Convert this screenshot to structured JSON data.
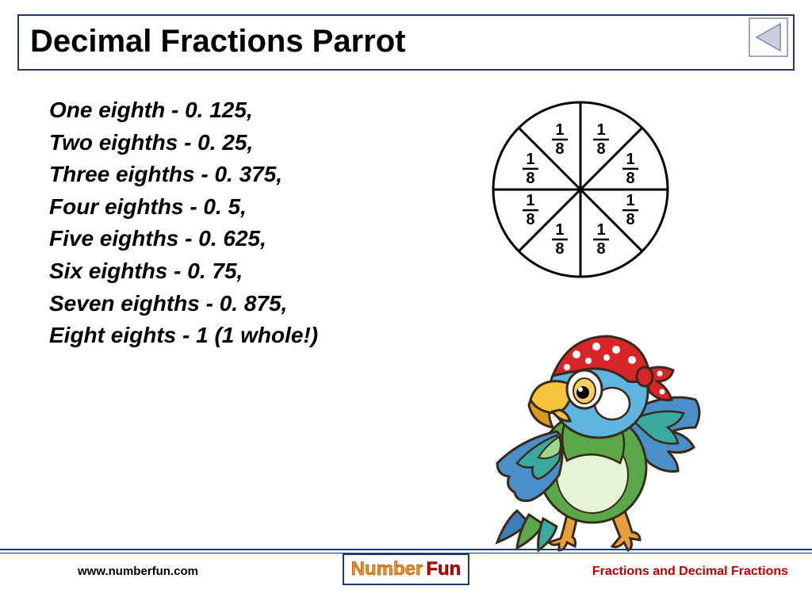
{
  "title": "Decimal Fractions Parrot",
  "lines": [
    "One eighth - 0. 125,",
    "Two eighths - 0. 25,",
    "Three eighths - 0. 375,",
    "Four eighths - 0. 5,",
    "Five eighths - 0. 625,",
    "Six eighths - 0. 75,",
    "Seven eighths - 0. 875,",
    "Eight eights - 1 (1 whole!)"
  ],
  "fraction_label": {
    "numer": "1",
    "denom": "8"
  },
  "pie": {
    "slices": 8,
    "radius": 110,
    "stroke": "#000000",
    "stroke_width": 3,
    "fill": "#ffffff"
  },
  "footer": {
    "left": "www.numberfun.com",
    "right": "Fractions and Decimal Fractions",
    "logo_left": "Number",
    "logo_right": "Fun"
  },
  "nav_arrow": {
    "border_color": "#7a8aa8",
    "fill_color": "#c8d0de"
  },
  "parrot_colors": {
    "bandana": "#d9252a",
    "bandana_dot": "#ffffff",
    "beak": "#f7c23c",
    "beak_shadow": "#d99a1f",
    "head": "#5fb5e0",
    "body_green": "#5aa84a",
    "body_light": "#9fd68f",
    "wing_blue": "#4a8fc9",
    "wing_teal": "#3aa9a0",
    "tail_blue": "#3a7fb8",
    "foot": "#e8a03a",
    "outline": "#3a2a1a",
    "eye_white": "#ffffff",
    "eye_yellow": "#f5d060",
    "pupil": "#000000",
    "belly": "#e8f4d8"
  }
}
